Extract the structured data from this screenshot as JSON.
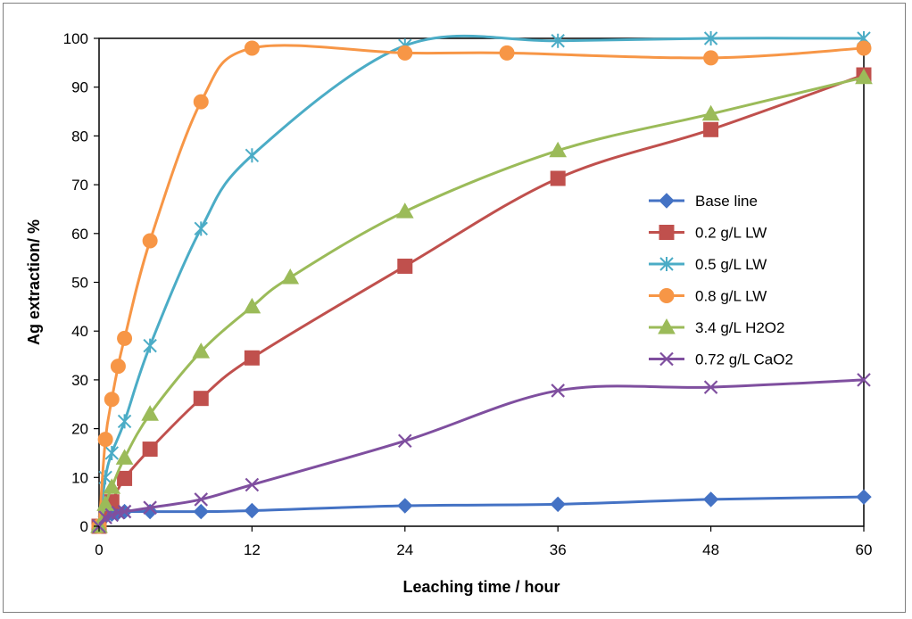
{
  "chart_data": {
    "type": "line",
    "title": "",
    "xlabel": "Leaching time / hour",
    "ylabel": "Ag extraction/ %",
    "xlim": [
      0,
      60
    ],
    "ylim": [
      0,
      100
    ],
    "xticks": [
      "0",
      "12",
      "24",
      "36",
      "48",
      "60"
    ],
    "yticks": [
      "0",
      "10",
      "20",
      "30",
      "40",
      "50",
      "60",
      "70",
      "80",
      "90",
      "100"
    ],
    "grid": false,
    "legend": "right",
    "series": [
      {
        "name": "Base line",
        "color": "#4472c4",
        "marker": "diamond",
        "x": [
          0,
          0.5,
          1,
          1.5,
          2,
          4,
          8,
          12,
          24,
          36,
          48,
          60
        ],
        "y": [
          0,
          2,
          2.5,
          2.8,
          3,
          3,
          3,
          3.2,
          4.2,
          4.5,
          5.5,
          6
        ]
      },
      {
        "name": "0.2 g/L LW",
        "color": "#c0504d",
        "marker": "square",
        "x": [
          0,
          1,
          2,
          4,
          8,
          12,
          24,
          36,
          48,
          60
        ],
        "y": [
          0,
          5,
          9.8,
          15.8,
          26.2,
          34.5,
          53.3,
          71.3,
          81.3,
          92.5
        ]
      },
      {
        "name": "0.5 g/L LW",
        "color": "#4bacc6",
        "marker": "star",
        "x": [
          0,
          0.5,
          1,
          2,
          4,
          8,
          12,
          24,
          36,
          48,
          60
        ],
        "y": [
          0,
          10,
          15,
          21.5,
          37,
          61,
          76,
          98.5,
          99.5,
          100,
          100
        ]
      },
      {
        "name": "0.8 g/L LW",
        "color": "#f79646",
        "marker": "circle",
        "x": [
          0,
          0.5,
          1,
          1.5,
          2,
          4,
          8,
          12,
          24,
          32,
          48,
          60
        ],
        "y": [
          0,
          17.8,
          26,
          32.8,
          38.5,
          58.5,
          87,
          98,
          97,
          97,
          96,
          98
        ]
      },
      {
        "name": "3.4 g/L H2O2",
        "color": "#9bbb59",
        "marker": "triangle",
        "x": [
          0,
          0.5,
          1,
          2,
          4,
          8,
          12,
          15,
          24,
          36,
          48,
          60
        ],
        "y": [
          0,
          4.5,
          8,
          14,
          23,
          35.8,
          45,
          51,
          64.5,
          77,
          84.5,
          92
        ]
      },
      {
        "name": "0.72 g/L CaO2",
        "color": "#7f4f9f",
        "marker": "x",
        "x": [
          0,
          0.5,
          1,
          1.5,
          2,
          4,
          8,
          12,
          24,
          36,
          48,
          60
        ],
        "y": [
          0,
          1.8,
          2.3,
          2.8,
          3,
          3.8,
          5.5,
          8.5,
          17.5,
          27.8,
          28.5,
          30
        ]
      }
    ]
  }
}
